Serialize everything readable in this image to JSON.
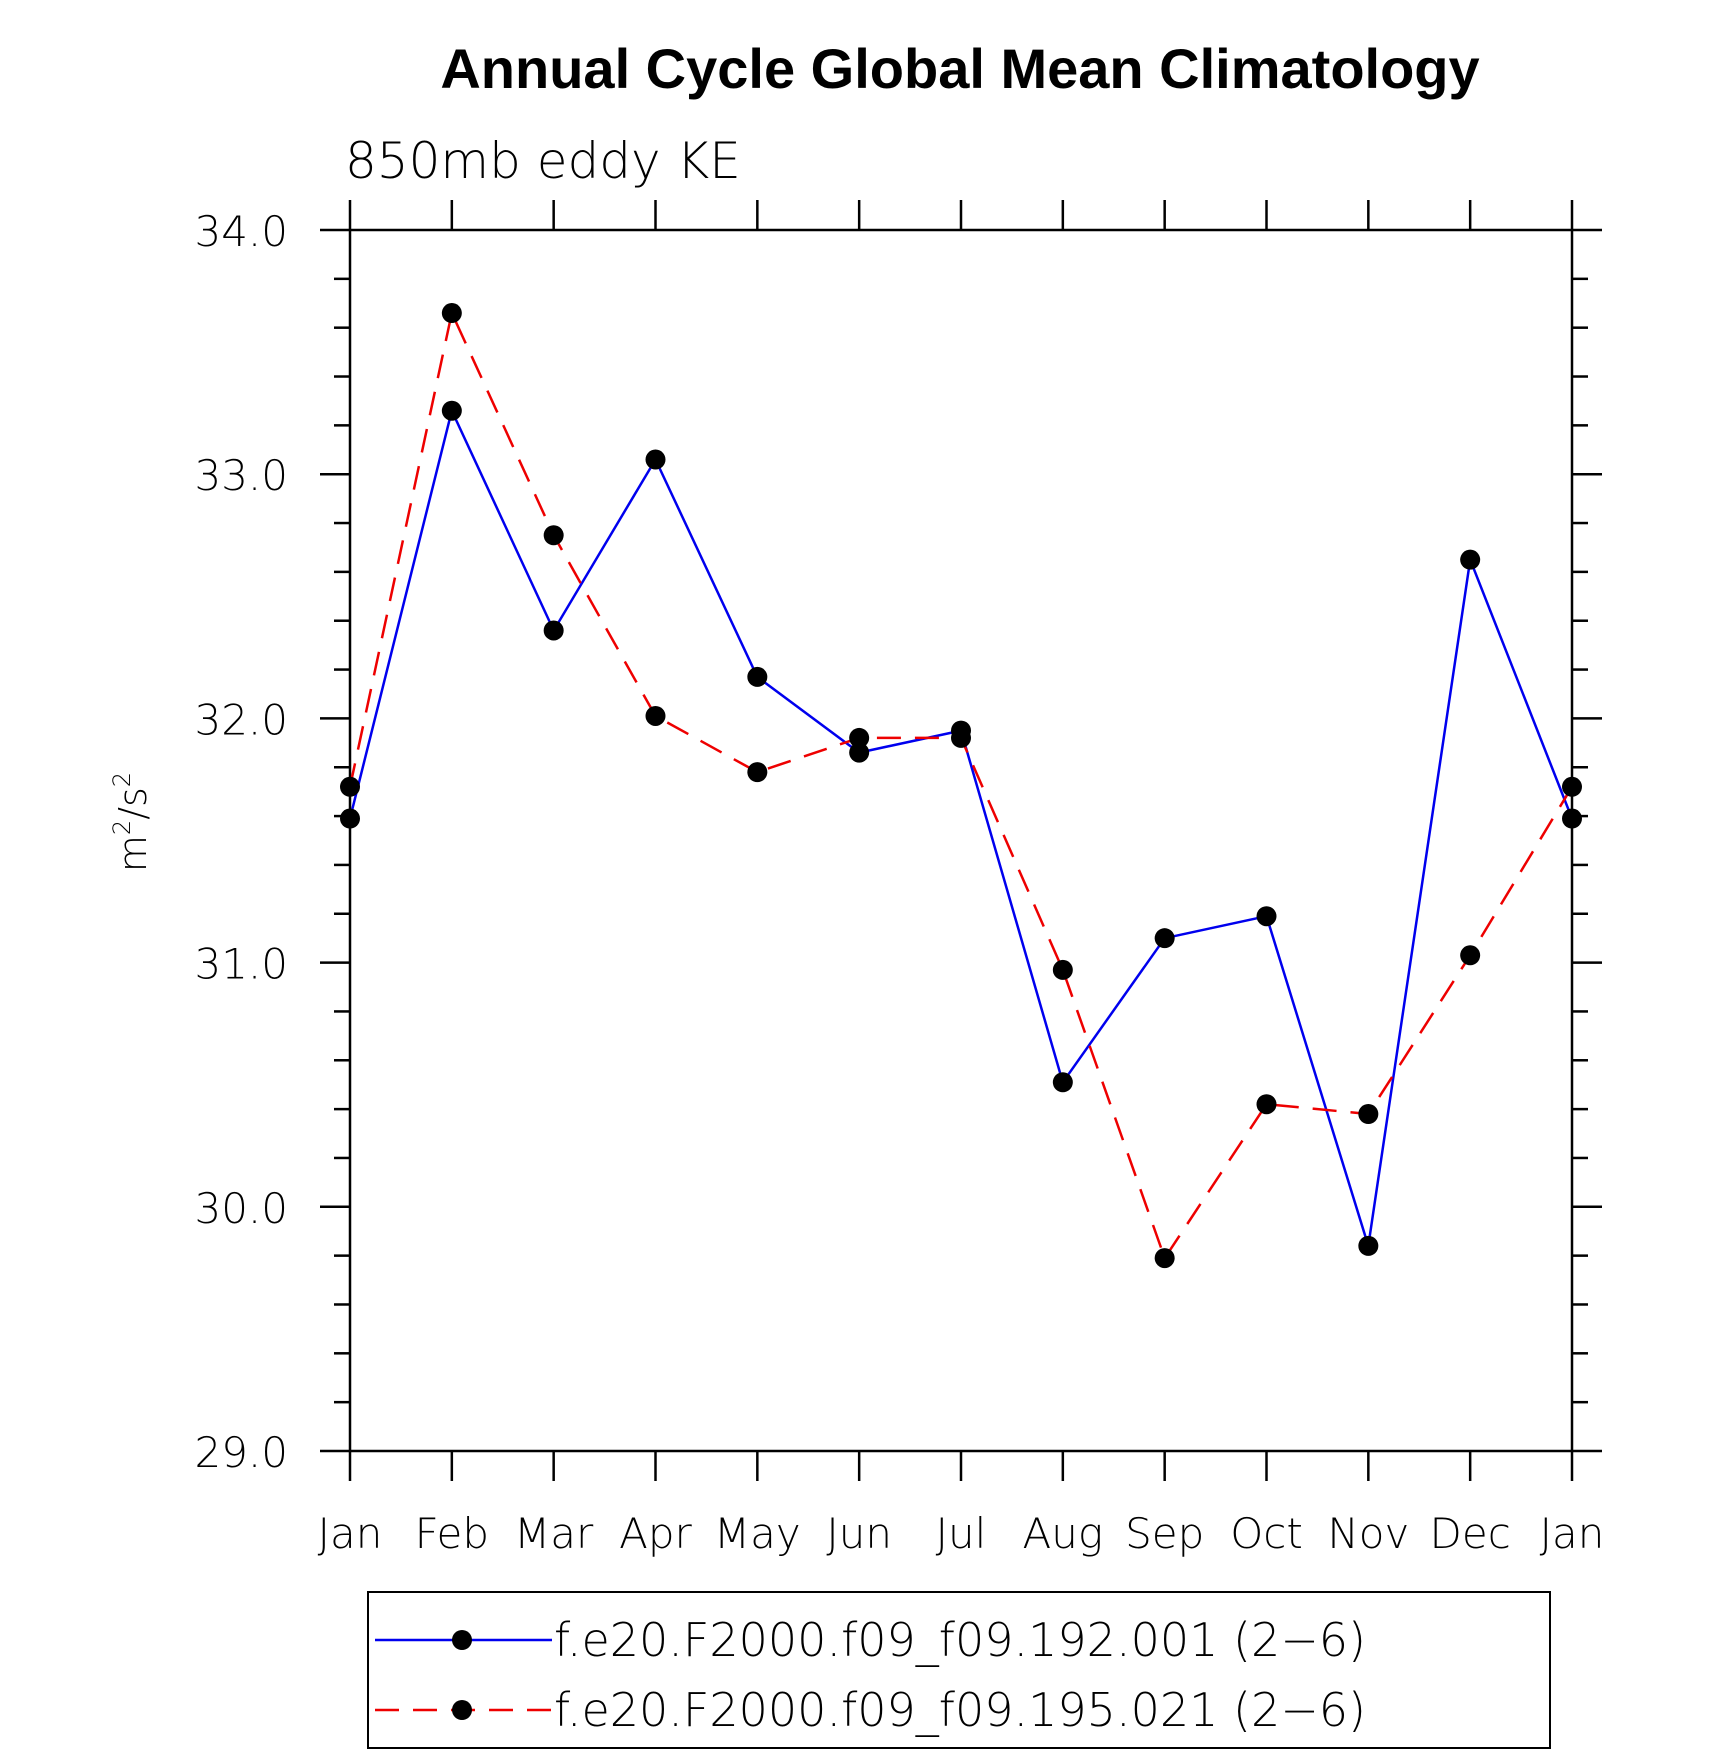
{
  "chart_data": {
    "type": "line",
    "title": "Annual Cycle Global Mean Climatology",
    "subtitle": "850mb eddy KE",
    "ylabel": "m2/s2",
    "ylabel_base": "m",
    "ylabel_exp1": "2",
    "ylabel_mid": "/s",
    "ylabel_exp2": "2",
    "xlabel": "",
    "categories": [
      "Jan",
      "Feb",
      "Mar",
      "Apr",
      "May",
      "Jun",
      "Jul",
      "Aug",
      "Sep",
      "Oct",
      "Nov",
      "Dec",
      "Jan"
    ],
    "ylim": [
      29.0,
      34.0
    ],
    "yticks": [
      "29.0",
      "30.0",
      "31.0",
      "32.0",
      "33.0",
      "34.0"
    ],
    "ytick_values": [
      29.0,
      30.0,
      31.0,
      32.0,
      33.0,
      34.0
    ],
    "series": [
      {
        "name": "f.e20.F2000.f09_f09.192.001 (2−6)",
        "color": "#0000ee",
        "dash": "solid",
        "values": [
          31.59,
          33.26,
          32.36,
          33.06,
          32.17,
          31.86,
          31.95,
          30.51,
          31.1,
          31.19,
          29.84,
          32.65,
          31.59
        ]
      },
      {
        "name": "f.e20.F2000.f09_f09.195.021 (2−6)",
        "color": "#ee0000",
        "dash": "dashed",
        "values": [
          31.72,
          33.66,
          32.75,
          32.01,
          31.78,
          31.92,
          31.92,
          30.97,
          29.79,
          30.42,
          30.38,
          31.03,
          31.72
        ]
      }
    ],
    "legend_position": "bottom"
  }
}
